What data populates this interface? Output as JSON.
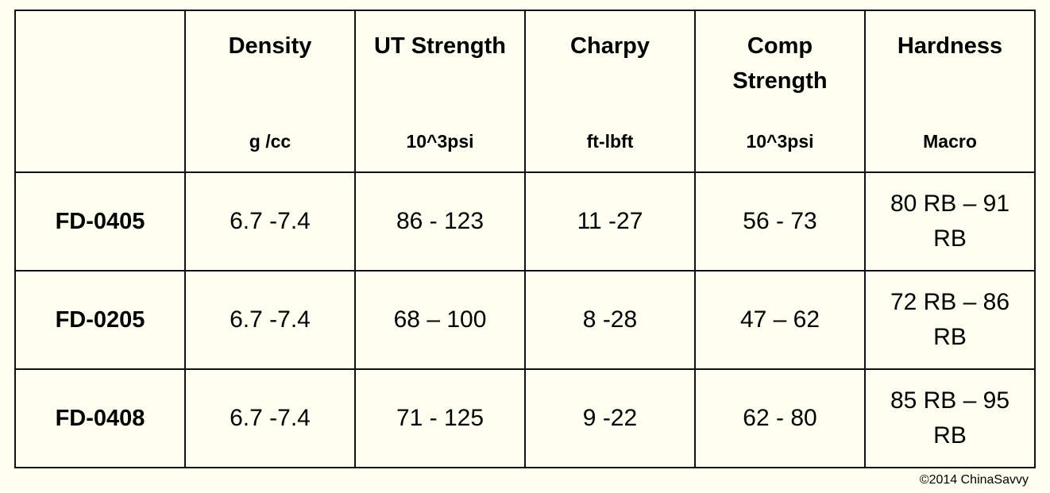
{
  "table": {
    "columns": [
      {
        "title": "Density",
        "unit": "g /cc"
      },
      {
        "title": "UT Strength",
        "unit": "10^3psi"
      },
      {
        "title": "Charpy",
        "unit": "ft-lbft"
      },
      {
        "title": "Comp Strength",
        "unit": "10^3psi"
      },
      {
        "title": "Hardness",
        "unit": "Macro"
      }
    ],
    "rows": [
      {
        "label": "FD-0405",
        "values": [
          "6.7 -7.4",
          "86 - 123",
          "11 -27",
          "56 - 73",
          "80 RB – 91 RB"
        ]
      },
      {
        "label": "FD-0205",
        "values": [
          "6.7 -7.4",
          "68 – 100",
          "8 -28",
          "47 – 62",
          "72 RB – 86 RB"
        ]
      },
      {
        "label": "FD-0408",
        "values": [
          "6.7 -7.4",
          "71 - 125",
          "9 -22",
          "62 - 80",
          "85 RB – 95 RB"
        ]
      }
    ]
  },
  "copyright": "©2014 ChinaSavvy"
}
